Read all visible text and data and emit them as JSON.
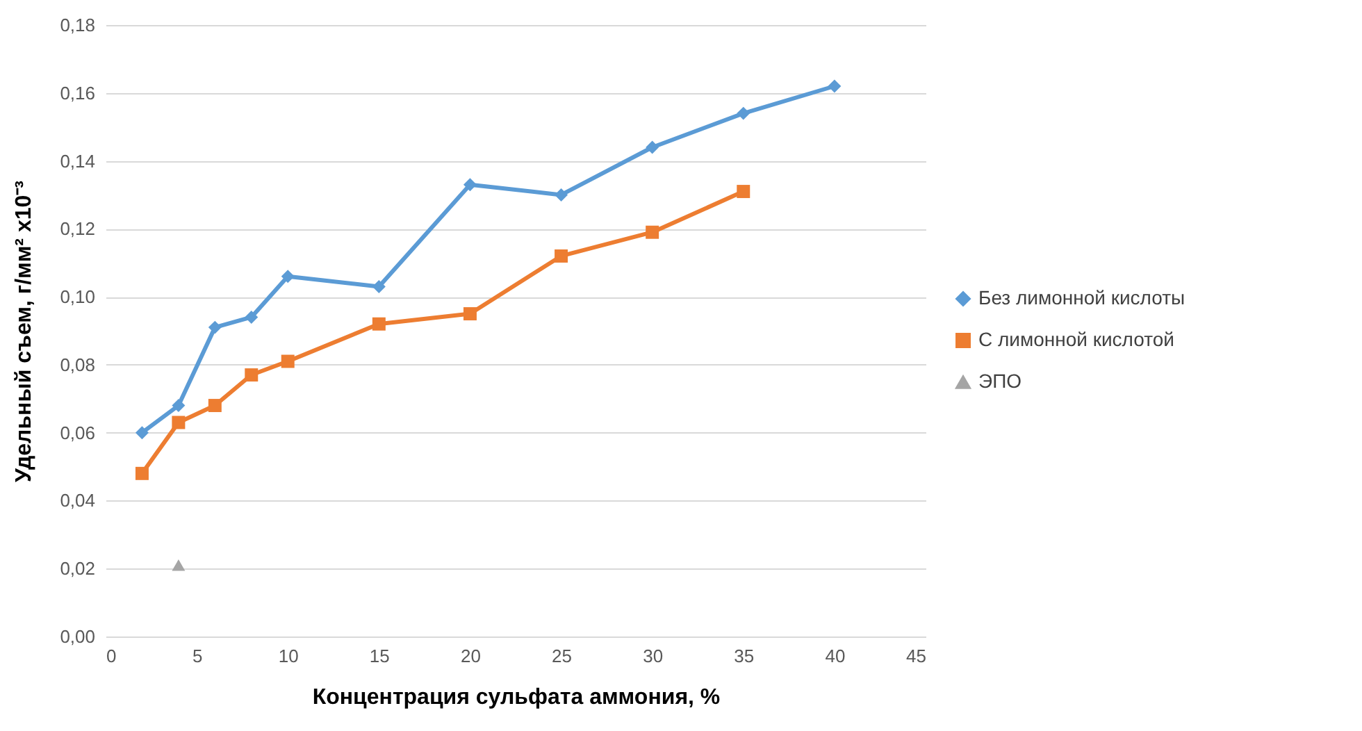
{
  "chart_data": {
    "type": "line",
    "xlabel": "Концентрация сульфата аммония, %",
    "ylabel": "Удельный съем, г/мм² x10⁻³",
    "xlim": [
      0,
      45
    ],
    "xticks": [
      0,
      5,
      10,
      15,
      20,
      25,
      30,
      35,
      40,
      45
    ],
    "ylim": [
      0,
      0.18
    ],
    "yticks": [
      {
        "value": 0,
        "label": "0,00"
      },
      {
        "value": 0.02,
        "label": "0,02"
      },
      {
        "value": 0.04,
        "label": "0,04"
      },
      {
        "value": 0.06,
        "label": "0,06"
      },
      {
        "value": 0.08,
        "label": "0,08"
      },
      {
        "value": 0.1,
        "label": "0,10"
      },
      {
        "value": 0.12,
        "label": "0,12"
      },
      {
        "value": 0.14,
        "label": "0,14"
      },
      {
        "value": 0.16,
        "label": "0,16"
      },
      {
        "value": 0.18,
        "label": "0,18"
      }
    ],
    "grid": "y",
    "legend": "right",
    "line_style": "solid",
    "series": [
      {
        "name": "Без лимонной кислоты",
        "marker": "diamond",
        "color": "#5b9bd5",
        "x": [
          2,
          4,
          6,
          8,
          10,
          15,
          20,
          25,
          30,
          35,
          40
        ],
        "values": [
          0.06,
          0.068,
          0.091,
          0.094,
          0.106,
          0.103,
          0.133,
          0.13,
          0.144,
          0.154,
          0.162
        ]
      },
      {
        "name": "С лимонной кислотой",
        "marker": "square",
        "color": "#ed7d31",
        "x": [
          2,
          4,
          6,
          8,
          10,
          15,
          20,
          25,
          30,
          35
        ],
        "values": [
          0.048,
          0.063,
          0.068,
          0.077,
          0.081,
          0.092,
          0.095,
          0.112,
          0.119,
          0.131
        ]
      },
      {
        "name": "ЭПО",
        "type": "scatter",
        "marker": "triangle",
        "color": "#a5a5a5",
        "x": [
          4
        ],
        "values": [
          0.021
        ]
      }
    ]
  }
}
